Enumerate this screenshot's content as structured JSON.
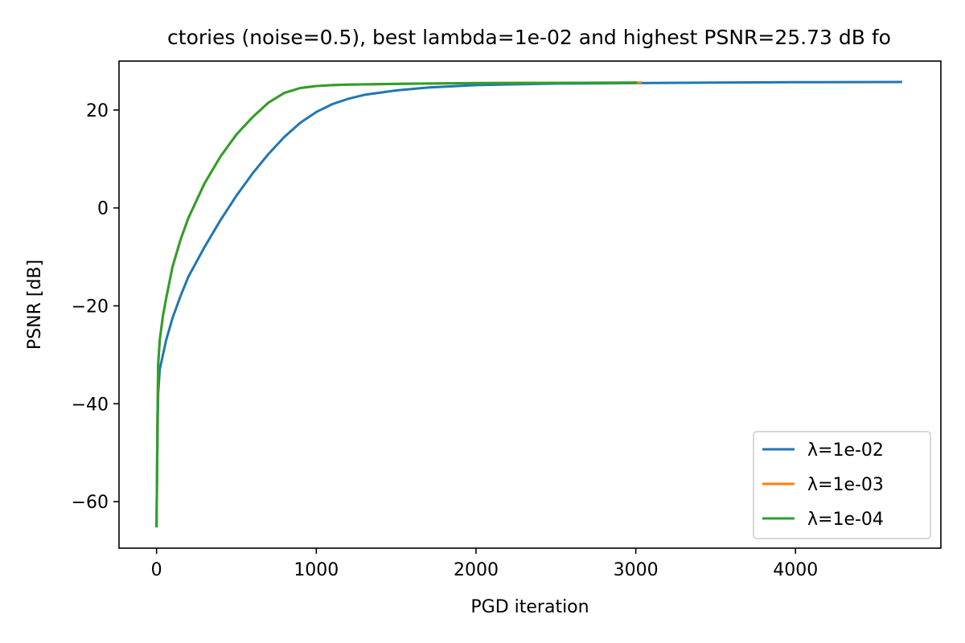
{
  "chart_data": {
    "type": "line",
    "title": "ctories (noise=0.5), best lambda=1e-02 and highest PSNR=25.73 dB fo",
    "xlabel": "PGD iteration",
    "ylabel": "PSNR [dB]",
    "xlim": [
      -235,
      4910
    ],
    "ylim": [
      -69.5,
      30
    ],
    "xticks": [
      0,
      1000,
      2000,
      3000,
      4000
    ],
    "xtick_labels": [
      "0",
      "1000",
      "2000",
      "3000",
      "4000"
    ],
    "yticks": [
      -60,
      -40,
      -20,
      0,
      20
    ],
    "ytick_labels": [
      "−60",
      "−40",
      "−20",
      "0",
      "20"
    ],
    "grid": false,
    "legend_position": "lower right",
    "series": [
      {
        "name": "λ=1e-02",
        "color": "#1f77b4",
        "x": [
          0,
          5,
          10,
          20,
          40,
          60,
          100,
          150,
          200,
          300,
          400,
          500,
          600,
          700,
          800,
          900,
          1000,
          1100,
          1200,
          1300,
          1500,
          1700,
          2000,
          2500,
          3000,
          3500,
          4000,
          4660
        ],
        "y": [
          -65,
          -50,
          -38,
          -33,
          -30,
          -27,
          -22.5,
          -18,
          -14,
          -8,
          -2.5,
          2.5,
          7,
          11,
          14.5,
          17.4,
          19.6,
          21.2,
          22.3,
          23.1,
          24,
          24.6,
          25.1,
          25.4,
          25.5,
          25.6,
          25.68,
          25.73
        ]
      },
      {
        "name": "λ=1e-03",
        "color": "#ff7f0e",
        "x": [
          0,
          5,
          10,
          20,
          40,
          60,
          100,
          150,
          200,
          300,
          400,
          500,
          600,
          700,
          800,
          900,
          1000,
          1100,
          1200,
          1500,
          2000,
          2500,
          3030
        ],
        "y": [
          -65,
          -45,
          -32,
          -27,
          -22,
          -18.5,
          -12,
          -6.5,
          -2,
          5,
          10.5,
          15,
          18.5,
          21.5,
          23.5,
          24.5,
          24.9,
          25.1,
          25.2,
          25.35,
          25.5,
          25.55,
          25.6
        ]
      },
      {
        "name": "λ=1e-04",
        "color": "#2ca02c",
        "x": [
          0,
          5,
          10,
          20,
          40,
          60,
          100,
          150,
          200,
          300,
          400,
          500,
          600,
          700,
          800,
          900,
          1000,
          1100,
          1200,
          1500,
          2000,
          2500,
          3000
        ],
        "y": [
          -65,
          -45,
          -32,
          -27,
          -22,
          -18.5,
          -12,
          -6.5,
          -2,
          5,
          10.5,
          15,
          18.5,
          21.5,
          23.5,
          24.5,
          24.9,
          25.1,
          25.2,
          25.35,
          25.5,
          25.55,
          25.6
        ]
      }
    ]
  }
}
